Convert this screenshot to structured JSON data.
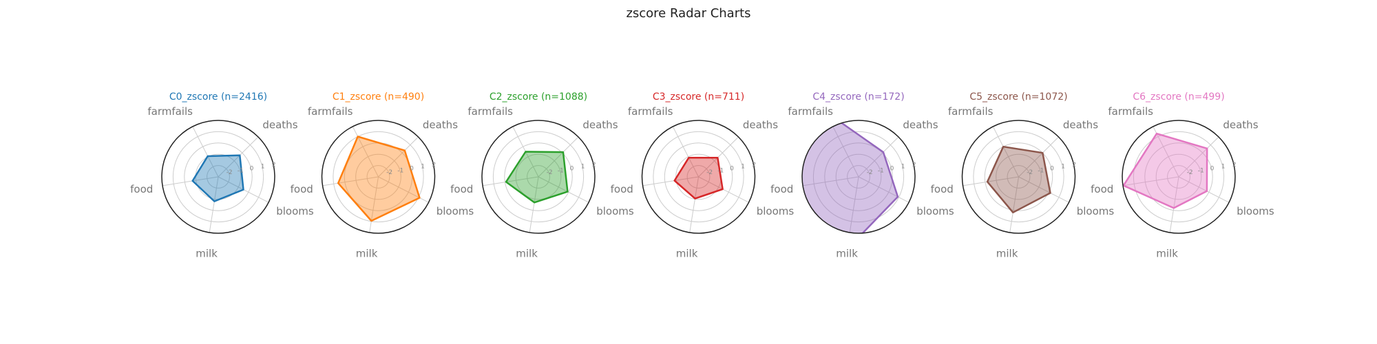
{
  "chart_data": {
    "type": "radar",
    "title": "zscore Radar Charts",
    "axes": [
      "deaths",
      "farmfails",
      "food",
      "milk",
      "blooms"
    ],
    "rlim": [
      -3,
      2
    ],
    "rticks": [
      "-2",
      "-1",
      "0",
      "1",
      "2"
    ],
    "grid": true,
    "charts": [
      {
        "title": "C0_zscore (n=2416)",
        "color": "#1f77b4",
        "values": {
          "deaths": -0.3,
          "farmfails": -0.95,
          "food": -0.7,
          "milk": -0.8,
          "blooms": -0.5
        }
      },
      {
        "title": "C1_zscore (n=490)",
        "color": "#ff7f0e",
        "values": {
          "deaths": 0.3,
          "farmfails": 1.0,
          "food": 0.6,
          "milk": 0.95,
          "blooms": 1.1
        }
      },
      {
        "title": "C2_zscore (n=1088)",
        "color": "#2ca02c",
        "values": {
          "deaths": 0.1,
          "farmfails": -0.5,
          "food": -0.1,
          "milk": -0.7,
          "blooms": -0.1
        }
      },
      {
        "title": "C3_zscore (n=711)",
        "color": "#d62728",
        "values": {
          "deaths": -0.6,
          "farmfails": -1.1,
          "food": -0.85,
          "milk": -1.05,
          "blooms": -0.6
        }
      },
      {
        "title": "C4_zscore (n=172)",
        "color": "#9467bd",
        "values": {
          "deaths": 0.1,
          "farmfails": 3.5,
          "food": 3.5,
          "milk": 3.5,
          "blooms": 0.9
        }
      },
      {
        "title": "C5_zscore (n=1072)",
        "color": "#8c564b",
        "values": {
          "deaths": 0.0,
          "farmfails": 0.0,
          "food": -0.2,
          "milk": 0.2,
          "blooms": 0.15
        }
      },
      {
        "title": "C6_zscore (n=499)",
        "color": "#e377c2",
        "values": {
          "deaths": 0.55,
          "farmfails": 1.3,
          "food": 1.95,
          "milk": -0.2,
          "blooms": -0.2
        }
      }
    ]
  }
}
